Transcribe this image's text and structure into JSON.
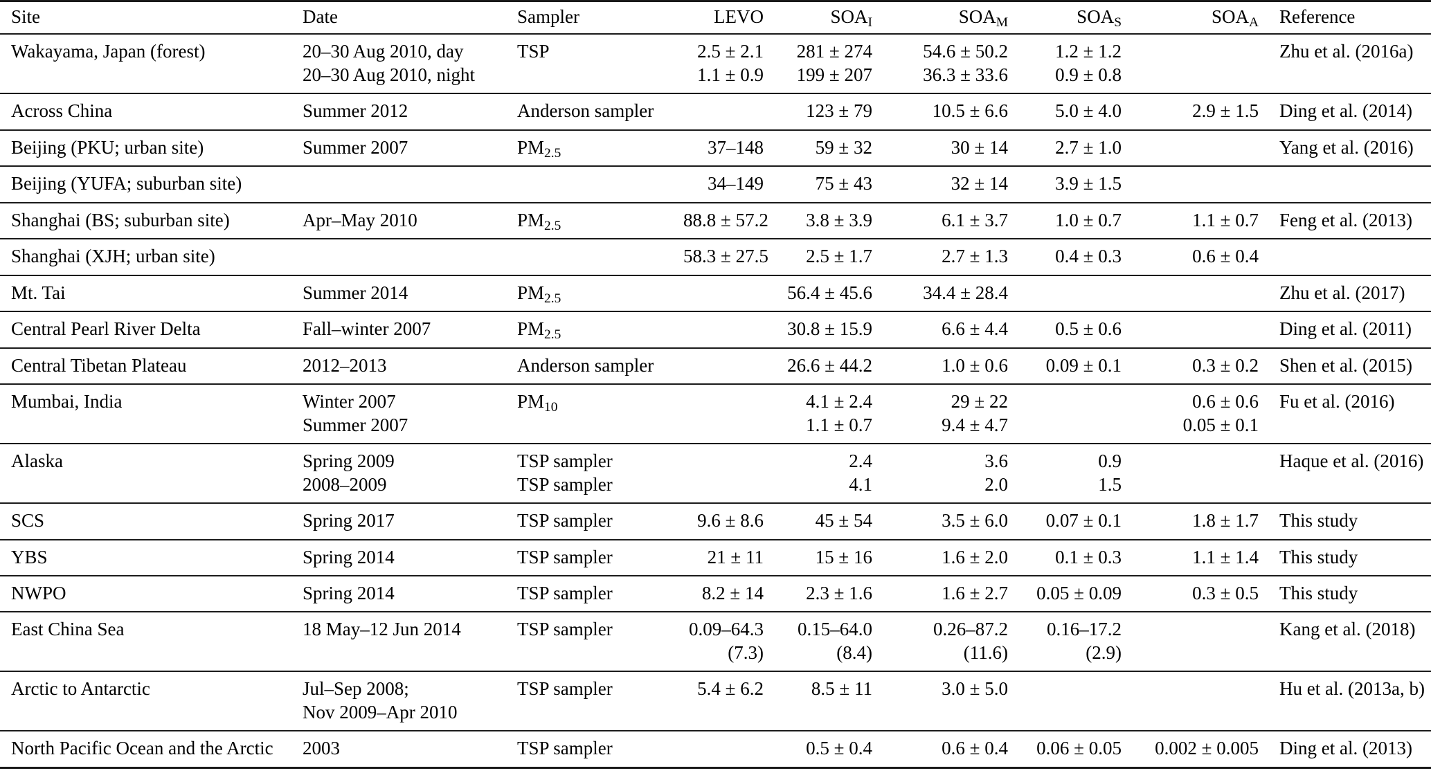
{
  "table": {
    "columns": [
      {
        "key": "site",
        "label": "Site",
        "align": "left"
      },
      {
        "key": "date",
        "label": "Date",
        "align": "left"
      },
      {
        "key": "sampler",
        "label": "Sampler",
        "align": "left"
      },
      {
        "key": "levo",
        "label": "LEVO",
        "align": "right"
      },
      {
        "key": "soa_i",
        "label": "SOA_{I}",
        "align": "right"
      },
      {
        "key": "soa_m",
        "label": "SOA_{M}",
        "align": "right"
      },
      {
        "key": "soa_s",
        "label": "SOA_{S}",
        "align": "right"
      },
      {
        "key": "soa_a",
        "label": "SOA_{A}",
        "align": "right"
      },
      {
        "key": "reference",
        "label": "Reference",
        "align": "left"
      }
    ],
    "rows": [
      {
        "site": "Wakayama, Japan (forest)",
        "date": "20–30 Aug 2010, day\n20–30 Aug 2010, night",
        "sampler": "TSP",
        "levo": "2.5 ± 2.1\n1.1 ± 0.9",
        "soa_i": "281 ± 274\n199 ± 207",
        "soa_m": "54.6 ± 50.2\n36.3 ± 33.6",
        "soa_s": "1.2 ± 1.2\n0.9 ± 0.8",
        "soa_a": "",
        "reference": "Zhu et al. (2016a)"
      },
      {
        "site": "Across China",
        "date": "Summer 2012",
        "sampler": "Anderson sampler",
        "levo": "",
        "soa_i": "123 ± 79",
        "soa_m": "10.5 ± 6.6",
        "soa_s": "5.0 ± 4.0",
        "soa_a": "2.9 ± 1.5",
        "reference": "Ding et al. (2014)"
      },
      {
        "site": "Beijing (PKU; urban site)",
        "date": "Summer 2007",
        "sampler": "PM_{2.5}",
        "levo": "37–148",
        "soa_i": "59 ± 32",
        "soa_m": "30 ± 14",
        "soa_s": "2.7 ± 1.0",
        "soa_a": "",
        "reference": "Yang et al. (2016)"
      },
      {
        "site": "Beijing (YUFA; suburban site)",
        "date": "",
        "sampler": "",
        "levo": "34–149",
        "soa_i": "75 ± 43",
        "soa_m": "32 ± 14",
        "soa_s": "3.9 ± 1.5",
        "soa_a": "",
        "reference": ""
      },
      {
        "site": "Shanghai (BS; suburban site)",
        "date": "Apr–May 2010",
        "sampler": "PM_{2.5}",
        "levo": "88.8 ± 57.2",
        "soa_i": "3.8 ± 3.9",
        "soa_m": "6.1 ± 3.7",
        "soa_s": "1.0 ± 0.7",
        "soa_a": "1.1 ± 0.7",
        "reference": "Feng et al. (2013)"
      },
      {
        "site": "Shanghai (XJH; urban site)",
        "date": "",
        "sampler": "",
        "levo": "58.3 ± 27.5",
        "soa_i": "2.5 ± 1.7",
        "soa_m": "2.7 ± 1.3",
        "soa_s": "0.4 ± 0.3",
        "soa_a": "0.6 ± 0.4",
        "reference": ""
      },
      {
        "site": "Mt. Tai",
        "date": "Summer 2014",
        "sampler": "PM_{2.5}",
        "levo": "",
        "soa_i": "56.4 ± 45.6",
        "soa_m": "34.4 ± 28.4",
        "soa_s": "",
        "soa_a": "",
        "reference": "Zhu et al. (2017)"
      },
      {
        "site": "Central Pearl River Delta",
        "date": "Fall–winter 2007",
        "sampler": "PM_{2.5}",
        "levo": "",
        "soa_i": "30.8 ± 15.9",
        "soa_m": "6.6 ± 4.4",
        "soa_s": "0.5 ± 0.6",
        "soa_a": "",
        "reference": "Ding et al. (2011)"
      },
      {
        "site": "Central Tibetan Plateau",
        "date": "2012–2013",
        "sampler": "Anderson sampler",
        "levo": "",
        "soa_i": "26.6 ± 44.2",
        "soa_m": "1.0 ± 0.6",
        "soa_s": "0.09 ± 0.1",
        "soa_a": "0.3 ± 0.2",
        "reference": "Shen et al. (2015)"
      },
      {
        "site": "Mumbai, India",
        "date": "Winter 2007\nSummer 2007",
        "sampler": "PM_{10}",
        "levo": "",
        "soa_i": "4.1 ± 2.4\n1.1 ± 0.7",
        "soa_m": "29 ± 22\n9.4 ± 4.7",
        "soa_s": "",
        "soa_a": "0.6 ± 0.6\n0.05 ± 0.1",
        "reference": "Fu et al. (2016)"
      },
      {
        "site": "Alaska",
        "date": "Spring 2009\n2008–2009",
        "sampler": "TSP sampler\nTSP sampler",
        "levo": "",
        "soa_i": "2.4\n4.1",
        "soa_m": "3.6\n2.0",
        "soa_s": "0.9\n1.5",
        "soa_a": "",
        "reference": "Haque et al. (2016)"
      },
      {
        "site": "SCS",
        "date": "Spring 2017",
        "sampler": "TSP sampler",
        "levo": "9.6 ± 8.6",
        "soa_i": "45 ± 54",
        "soa_m": "3.5 ± 6.0",
        "soa_s": "0.07 ± 0.1",
        "soa_a": "1.8 ± 1.7",
        "reference": "This study"
      },
      {
        "site": "YBS",
        "date": "Spring 2014",
        "sampler": "TSP sampler",
        "levo": "21 ± 11",
        "soa_i": "15 ± 16",
        "soa_m": "1.6 ± 2.0",
        "soa_s": "0.1 ± 0.3",
        "soa_a": "1.1 ± 1.4",
        "reference": "This study"
      },
      {
        "site": "NWPO",
        "date": "Spring 2014",
        "sampler": "TSP sampler",
        "levo": "8.2 ± 14",
        "soa_i": "2.3 ± 1.6",
        "soa_m": "1.6 ± 2.7",
        "soa_s": "0.05 ± 0.09",
        "soa_a": "0.3 ± 0.5",
        "reference": "This study"
      },
      {
        "site": "East China Sea",
        "date": "18 May–12 Jun 2014",
        "sampler": "TSP sampler",
        "levo": "0.09–64.3\n(7.3)",
        "soa_i": "0.15–64.0\n(8.4)",
        "soa_m": "0.26–87.2\n(11.6)",
        "soa_s": "0.16–17.2\n(2.9)",
        "soa_a": "",
        "reference": "Kang et al. (2018)"
      },
      {
        "site": "Arctic to Antarctic",
        "date": "Jul–Sep 2008;\nNov 2009–Apr 2010",
        "sampler": "TSP sampler",
        "levo": "5.4 ± 6.2",
        "soa_i": "8.5 ± 11",
        "soa_m": "3.0 ± 5.0",
        "soa_s": "",
        "soa_a": "",
        "reference": "Hu et al. (2013a, b)"
      },
      {
        "site": "North Pacific Ocean and the Arctic",
        "date": "2003",
        "sampler": "TSP sampler",
        "levo": "",
        "soa_i": "0.5 ± 0.4",
        "soa_m": "0.6 ± 0.4",
        "soa_s": "0.06 ± 0.05",
        "soa_a": "0.002 ± 0.005",
        "reference": "Ding et al. (2013)"
      }
    ]
  },
  "colors": {
    "text": "#000000",
    "rule": "#1a1a1a",
    "background": "#ffffff"
  }
}
